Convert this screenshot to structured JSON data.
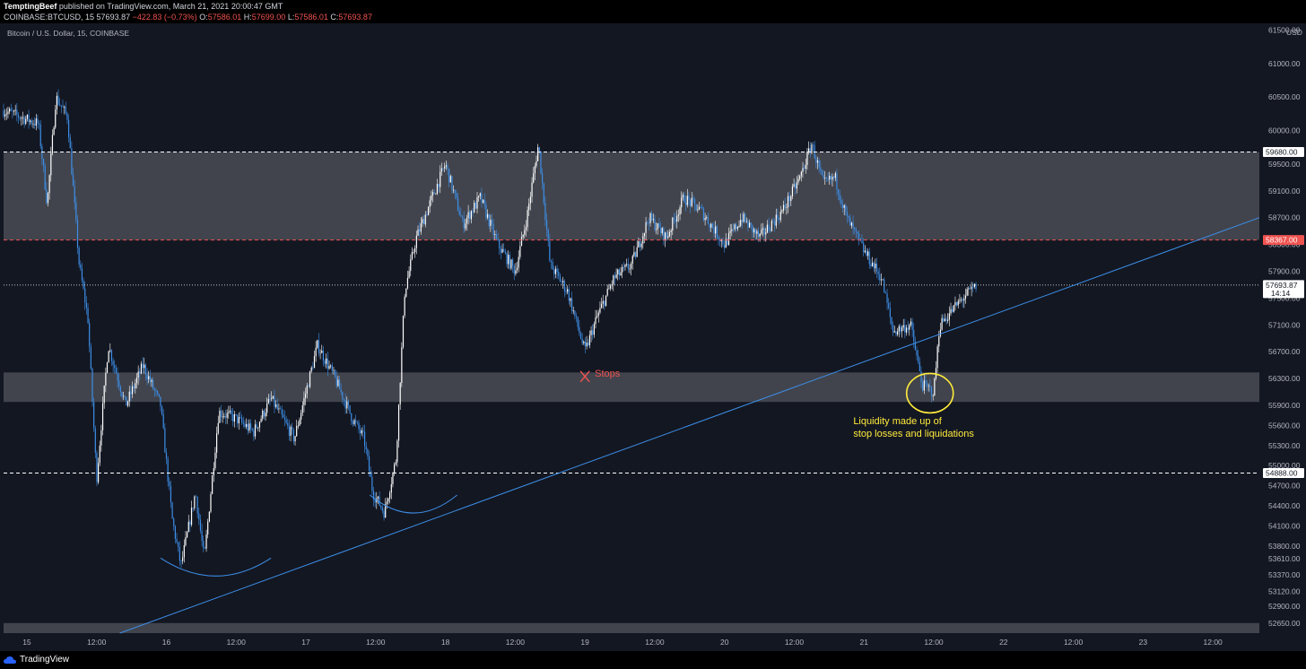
{
  "header": {
    "author": "TemptingBeef",
    "published": "published on TradingView.com, March 21, 2021 20:00:47 GMT",
    "symbol": "COINBASE:BTCUSD, 15",
    "price": "57693.87",
    "change": "−422.83 (−0.73%)",
    "o_label": "O:",
    "o": "57586.01",
    "h_label": "H:",
    "h": "57699.00",
    "l_label": "L:",
    "l": "57586.01",
    "c_label": "C:",
    "c": "57693.87"
  },
  "chart_title": "Bitcoin / U.S. Dollar, 15, COINBASE",
  "footer": {
    "brand": "TradingView"
  },
  "colors": {
    "background": "#131722",
    "candle_up": "#ffffff",
    "candle_down": "#3d8ee6",
    "trendline": "#3d8ee6",
    "zone": "#4a4c55",
    "red_level": "#ef5350",
    "annotation_yellow": "#ffeb3b"
  },
  "chart_data": {
    "type": "candlestick",
    "title": "Bitcoin / U.S. Dollar, 15, COINBASE",
    "currency": "USD",
    "ylim": [
      52500,
      61600
    ],
    "y_ticks": [
      61500,
      61000,
      60500,
      60000,
      59500,
      59100,
      58700,
      58300,
      57900,
      57500,
      57100,
      56700,
      56300,
      55900,
      55600,
      55300,
      55000,
      54700,
      54400,
      54100,
      53800,
      53610,
      53370,
      53120,
      52900,
      52650
    ],
    "y_tick_labels": [
      "61500.00",
      "61000.00",
      "60500.00",
      "60000.00",
      "59500.00",
      "59100.00",
      "58700.00",
      "58300.00",
      "57900.00",
      "57500.00",
      "57100.00",
      "56700.00",
      "56300.00",
      "55900.00",
      "55600.00",
      "55300.00",
      "55000.00",
      "54700.00",
      "54400.00",
      "54100.00",
      "53800.00",
      "53610.00",
      "53370.00",
      "53120.00",
      "52900.00",
      "52650.00"
    ],
    "x_range": [
      "2021-03-14 20:00",
      "2021-03-23 20:00"
    ],
    "x_tick_labels": [
      "15",
      "12:00",
      "16",
      "12:00",
      "17",
      "12:00",
      "18",
      "12:00",
      "19",
      "12:00",
      "20",
      "12:00",
      "21",
      "12:00",
      "22",
      "12:00",
      "23",
      "12:00"
    ],
    "x_tick_times": [
      "2021-03-15 00:00",
      "2021-03-15 12:00",
      "2021-03-16 00:00",
      "2021-03-16 12:00",
      "2021-03-17 00:00",
      "2021-03-17 12:00",
      "2021-03-18 00:00",
      "2021-03-18 12:00",
      "2021-03-19 00:00",
      "2021-03-19 12:00",
      "2021-03-20 00:00",
      "2021-03-20 12:00",
      "2021-03-21 00:00",
      "2021-03-21 12:00",
      "2021-03-22 00:00",
      "2021-03-22 12:00",
      "2021-03-23 00:00",
      "2021-03-23 12:00"
    ],
    "price_path": [
      [
        "2021-03-14 20:00",
        60300
      ],
      [
        "2021-03-15 02:00",
        60100
      ],
      [
        "2021-03-15 03:30",
        58900
      ],
      [
        "2021-03-15 05:00",
        60500
      ],
      [
        "2021-03-15 07:00",
        60200
      ],
      [
        "2021-03-15 09:00",
        58000
      ],
      [
        "2021-03-15 10:30",
        57200
      ],
      [
        "2021-03-15 12:00",
        54800
      ],
      [
        "2021-03-15 14:00",
        56800
      ],
      [
        "2021-03-15 17:00",
        55900
      ],
      [
        "2021-03-15 20:00",
        56500
      ],
      [
        "2021-03-15 23:00",
        55900
      ],
      [
        "2021-03-16 01:00",
        54200
      ],
      [
        "2021-03-16 02:30",
        53500
      ],
      [
        "2021-03-16 05:00",
        54600
      ],
      [
        "2021-03-16 06:30",
        53600
      ],
      [
        "2021-03-16 09:00",
        55800
      ],
      [
        "2021-03-16 12:00",
        55700
      ],
      [
        "2021-03-16 15:00",
        55500
      ],
      [
        "2021-03-16 18:00",
        56000
      ],
      [
        "2021-03-16 22:00",
        55400
      ],
      [
        "2021-03-17 02:00",
        56800
      ],
      [
        "2021-03-17 05:00",
        56300
      ],
      [
        "2021-03-17 08:00",
        55700
      ],
      [
        "2021-03-17 10:00",
        55400
      ],
      [
        "2021-03-17 11:30",
        54600
      ],
      [
        "2021-03-17 13:30",
        54300
      ],
      [
        "2021-03-17 15:30",
        55100
      ],
      [
        "2021-03-17 17:00",
        57600
      ],
      [
        "2021-03-17 19:00",
        58400
      ],
      [
        "2021-03-18 00:00",
        59500
      ],
      [
        "2021-03-18 03:00",
        58600
      ],
      [
        "2021-03-18 06:00",
        59000
      ],
      [
        "2021-03-18 09:00",
        58300
      ],
      [
        "2021-03-18 12:00",
        57900
      ],
      [
        "2021-03-18 14:00",
        58700
      ],
      [
        "2021-03-18 16:00",
        59800
      ],
      [
        "2021-03-18 18:00",
        58000
      ],
      [
        "2021-03-18 21:00",
        57600
      ],
      [
        "2021-03-19 00:00",
        56700
      ],
      [
        "2021-03-19 02:00",
        57200
      ],
      [
        "2021-03-19 05:00",
        57800
      ],
      [
        "2021-03-19 08:00",
        58000
      ],
      [
        "2021-03-19 11:00",
        58700
      ],
      [
        "2021-03-19 14:00",
        58400
      ],
      [
        "2021-03-19 17:00",
        59000
      ],
      [
        "2021-03-19 20:00",
        58800
      ],
      [
        "2021-03-20 00:00",
        58300
      ],
      [
        "2021-03-20 03:00",
        58700
      ],
      [
        "2021-03-20 06:00",
        58400
      ],
      [
        "2021-03-20 10:00",
        58800
      ],
      [
        "2021-03-20 13:00",
        59300
      ],
      [
        "2021-03-20 15:00",
        59800
      ],
      [
        "2021-03-20 17:00",
        59200
      ],
      [
        "2021-03-20 19:00",
        59300
      ],
      [
        "2021-03-20 21:00",
        58700
      ],
      [
        "2021-03-21 00:00",
        58200
      ],
      [
        "2021-03-21 03:00",
        57800
      ],
      [
        "2021-03-21 05:00",
        57000
      ],
      [
        "2021-03-21 08:00",
        57100
      ],
      [
        "2021-03-21 10:00",
        56200
      ],
      [
        "2021-03-21 12:00",
        56100
      ],
      [
        "2021-03-21 13:00",
        57100
      ],
      [
        "2021-03-21 15:00",
        57300
      ],
      [
        "2021-03-21 17:00",
        57500
      ],
      [
        "2021-03-21 19:30",
        57694
      ]
    ],
    "levels": [
      {
        "price": 59680,
        "label": "59680.00",
        "style": "dashed",
        "color": "#ffffff"
      },
      {
        "price": 58367,
        "label": "58367.00",
        "style": "dashed",
        "color": "#ef5350"
      },
      {
        "price": 57693.87,
        "label": "57693.87",
        "sublabel": "14:14",
        "style": "dotted",
        "color": "#ffffff"
      },
      {
        "price": 54888,
        "label": "54888.00",
        "style": "dashed",
        "color": "#ffffff"
      }
    ],
    "zones": [
      {
        "from": 58367,
        "to": 59680
      },
      {
        "from": 55950,
        "to": 56390
      },
      {
        "from": 52500,
        "to": 52650
      }
    ],
    "trendline": {
      "from": [
        "2021-03-15 16:00",
        52500
      ],
      "to": [
        "2021-03-23 20:00",
        58700
      ]
    },
    "annotations": [
      {
        "text": "Stops",
        "time": "2021-03-19 00:00",
        "price": 56330,
        "color": "#ef5350",
        "marker": "x"
      },
      {
        "text": "Liquidity made up of",
        "time": "2021-03-21 10:30",
        "price": 55620,
        "color": "#ffeb3b"
      },
      {
        "text": "stop losses and liquidations",
        "time": "2021-03-21 10:30",
        "price": 55430,
        "color": "#ffeb3b"
      }
    ],
    "highlight_circle": {
      "time": "2021-03-21 11:20",
      "price": 56080,
      "color": "#ffeb3b"
    },
    "bottom_arcs": [
      {
        "from": [
          "2021-03-15 23:00",
          53620
        ],
        "to": [
          "2021-03-16 18:00",
          53620
        ]
      },
      {
        "from": [
          "2021-03-17 11:00",
          54560
        ],
        "to": [
          "2021-03-18 02:00",
          54560
        ]
      }
    ]
  }
}
